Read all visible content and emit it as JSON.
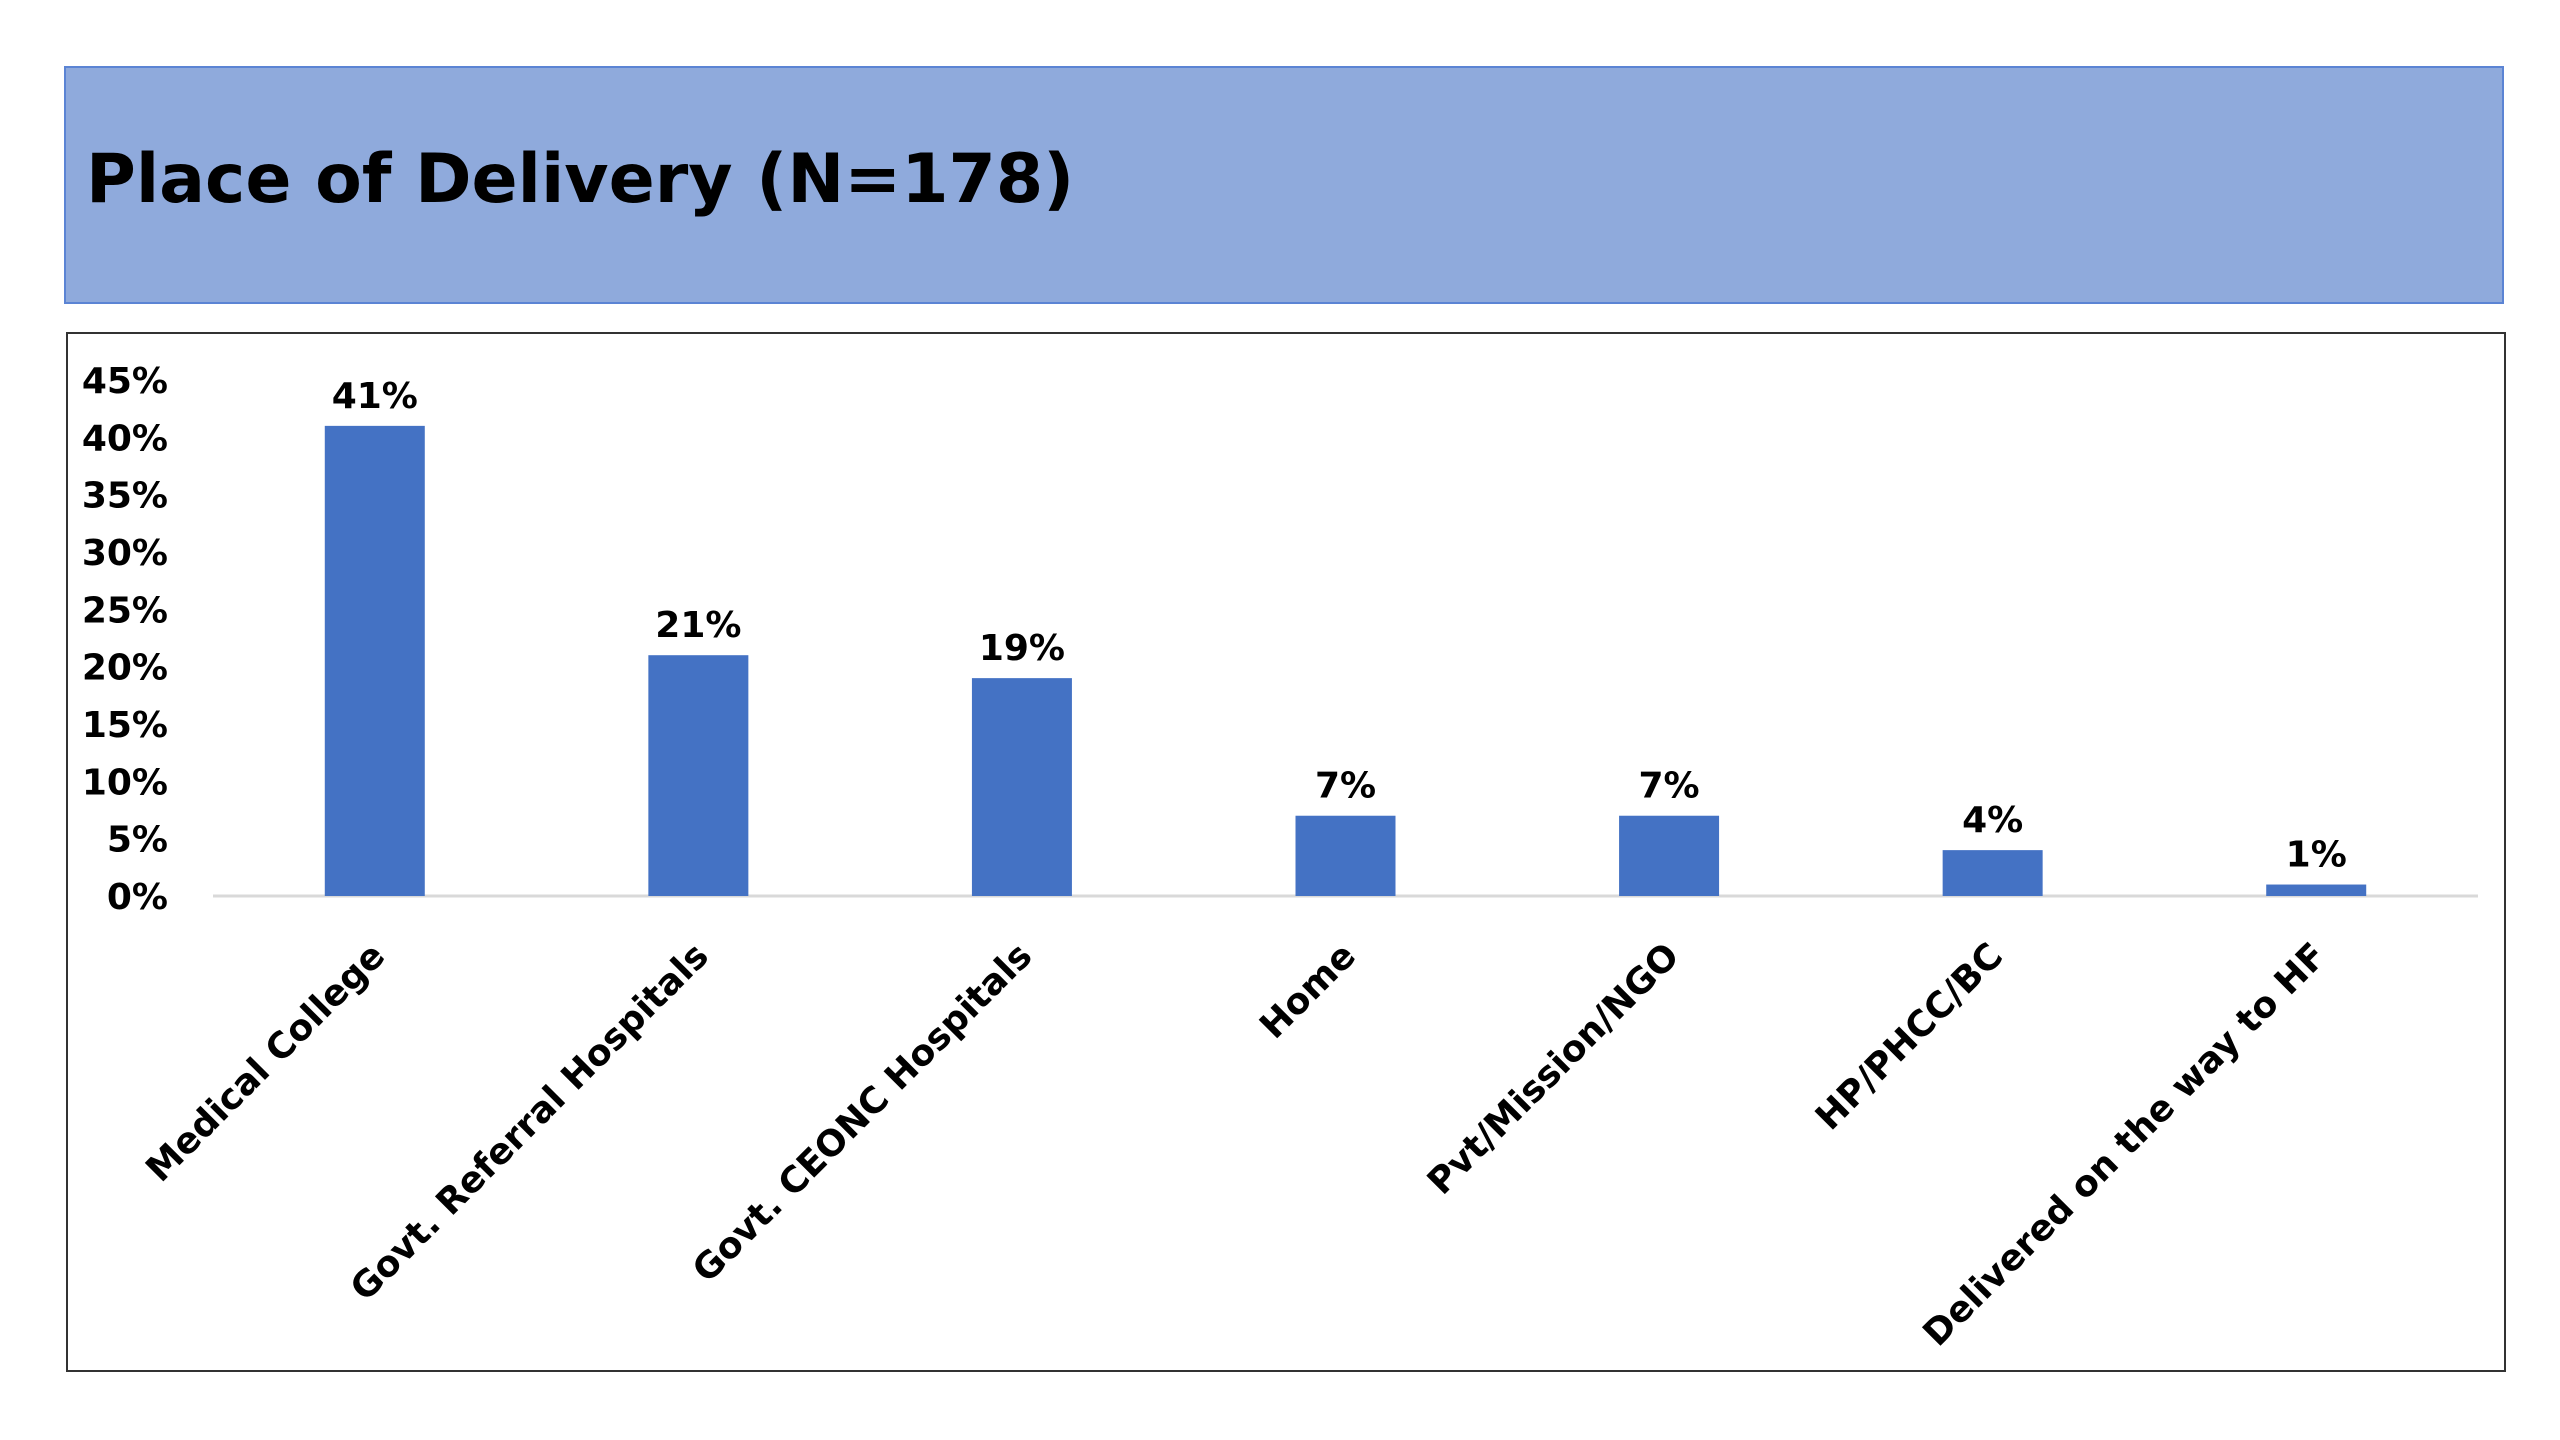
{
  "title": "Place of Delivery (N=178)",
  "colors": {
    "banner": "#8faadc",
    "bar": "#4472c4"
  },
  "chart_data": {
    "type": "bar",
    "title": "Place of Delivery (N=178)",
    "xlabel": "",
    "ylabel": "",
    "ylim": [
      0,
      45
    ],
    "yticks": [
      "0%",
      "5%",
      "10%",
      "15%",
      "20%",
      "25%",
      "30%",
      "35%",
      "40%",
      "45%"
    ],
    "categories": [
      "Medical College",
      "Govt. Referral Hospitals",
      "Govt. CEONC Hospitals",
      "Home",
      "Pvt/Mission/NGO",
      "HP/PHCC/BC",
      "Delivered on the way to HF"
    ],
    "values": [
      41,
      21,
      19,
      7,
      7,
      4,
      1
    ],
    "data_labels": [
      "41%",
      "21%",
      "19%",
      "7%",
      "7%",
      "4%",
      "1%"
    ],
    "grid": false,
    "legend": "none"
  }
}
